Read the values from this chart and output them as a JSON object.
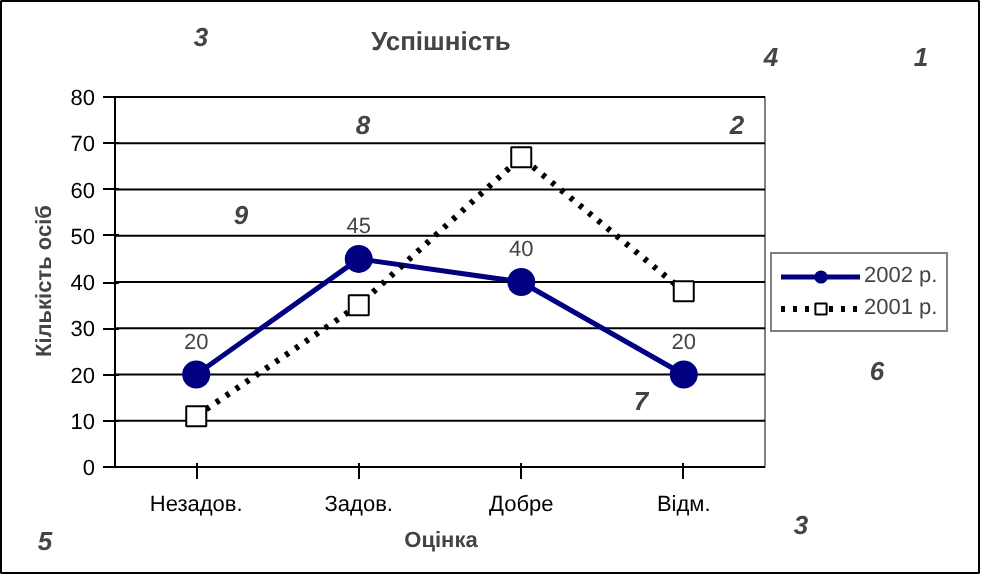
{
  "chart_data": {
    "type": "line",
    "title": "Успішність",
    "xlabel": "Оцінка",
    "ylabel": "Кількість осіб",
    "categories": [
      "Незадов.",
      "Задов.",
      "Добре",
      "Відм."
    ],
    "ylim": [
      0,
      80
    ],
    "yticks": [
      0,
      10,
      20,
      30,
      40,
      50,
      60,
      70,
      80
    ],
    "grid": "y",
    "legend": "right",
    "series": [
      {
        "name": "2002 р.",
        "color": "#000080",
        "values": [
          20,
          45,
          40,
          20
        ],
        "marker": "circle",
        "line_style": "solid",
        "value_labels": [
          "20",
          "45",
          "40",
          "20"
        ]
      },
      {
        "name": "2001 р.",
        "color": "#000000",
        "values": [
          11,
          35,
          67,
          38
        ],
        "marker": "square",
        "line_style": "dotted"
      }
    ],
    "annotations": [
      "3",
      "4",
      "1",
      "8",
      "2",
      "9",
      "7",
      "6",
      "5",
      "3"
    ]
  }
}
